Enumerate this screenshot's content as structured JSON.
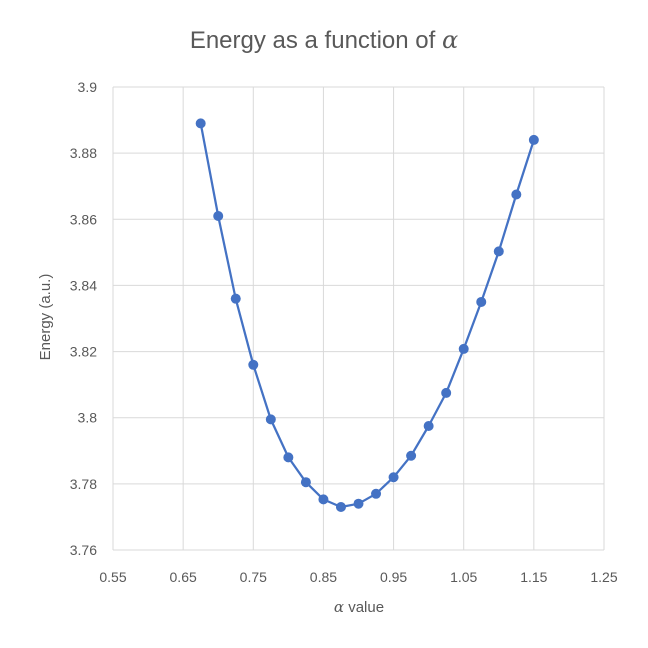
{
  "chart_data": {
    "type": "line",
    "title_text": "Energy as a function of ",
    "title_symbol": "α",
    "xlabel_symbol": "α",
    "xlabel_text": " value",
    "ylabel": "Energy (a.u.)",
    "xlim": [
      0.55,
      1.25
    ],
    "ylim": [
      3.76,
      3.9
    ],
    "xticks": [
      0.55,
      0.65,
      0.75,
      0.85,
      0.95,
      1.05,
      1.15,
      1.25
    ],
    "xtick_labels": [
      "0.55",
      "0.65",
      "0.75",
      "0.85",
      "0.95",
      "1.05",
      "1.15",
      "1.25"
    ],
    "yticks": [
      3.76,
      3.78,
      3.8,
      3.82,
      3.84,
      3.86,
      3.88,
      3.9
    ],
    "ytick_labels": [
      "3.76",
      "3.78",
      "3.8",
      "3.82",
      "3.84",
      "3.86",
      "3.88",
      "3.9"
    ],
    "grid": true,
    "legend": false,
    "series": [
      {
        "color": "#4472C4",
        "x": [
          0.675,
          0.7,
          0.725,
          0.75,
          0.775,
          0.8,
          0.825,
          0.85,
          0.875,
          0.9,
          0.925,
          0.95,
          0.975,
          1.0,
          1.025,
          1.05,
          1.075,
          1.1,
          1.125,
          1.15
        ],
        "y": [
          3.889,
          3.861,
          3.836,
          3.816,
          3.7995,
          3.788,
          3.7805,
          3.7753,
          3.773,
          3.774,
          3.777,
          3.782,
          3.7885,
          3.7975,
          3.8075,
          3.8208,
          3.835,
          3.8503,
          3.8675,
          3.884
        ]
      }
    ]
  }
}
